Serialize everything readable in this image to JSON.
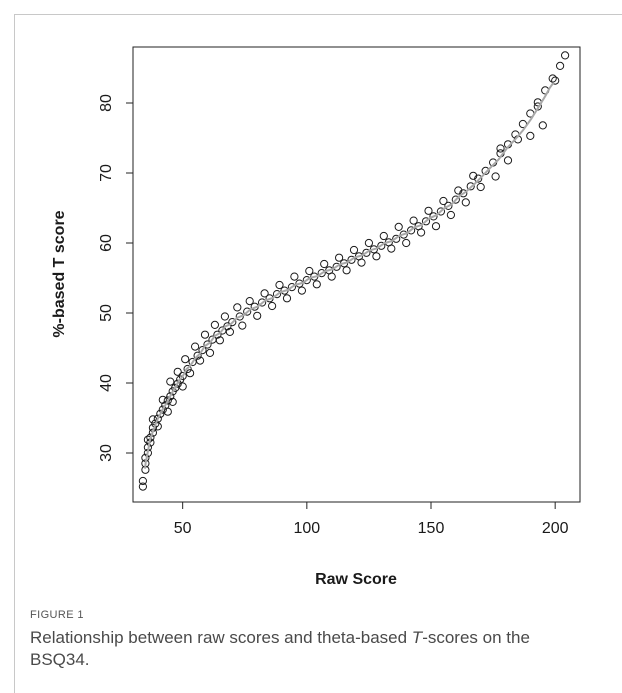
{
  "figure": {
    "label": "FIGURE 1",
    "caption_before": "Relationship between raw scores and theta-based ",
    "caption_italic": "T",
    "caption_after": "-scores on the BSQ34."
  },
  "chart_data": {
    "type": "scatter",
    "xlabel": "Raw Score",
    "ylabel": "%-based T score",
    "xlim": [
      30,
      210
    ],
    "ylim": [
      23,
      88
    ],
    "xticks": [
      50,
      100,
      150,
      200
    ],
    "yticks": [
      30,
      40,
      50,
      60,
      70,
      80
    ],
    "grid": false,
    "point_color": "#1a1a1a",
    "fit_color": "#a8a8a8",
    "points": [
      [
        34,
        25.2
      ],
      [
        34,
        26.0
      ],
      [
        35,
        27.6
      ],
      [
        35,
        28.5
      ],
      [
        35,
        29.3
      ],
      [
        36,
        30.0
      ],
      [
        36,
        30.8
      ],
      [
        37,
        31.5
      ],
      [
        37,
        32.2
      ],
      [
        38,
        32.9
      ],
      [
        38,
        33.6
      ],
      [
        39,
        34.2
      ],
      [
        40,
        34.9
      ],
      [
        41,
        35.6
      ],
      [
        42,
        36.2
      ],
      [
        43,
        36.8
      ],
      [
        44,
        37.5
      ],
      [
        45,
        38.1
      ],
      [
        46,
        38.8
      ],
      [
        47,
        39.3
      ],
      [
        48,
        39.9
      ],
      [
        49,
        40.5
      ],
      [
        50,
        41.0
      ],
      [
        52,
        42.0
      ],
      [
        54,
        43.0
      ],
      [
        56,
        43.9
      ],
      [
        58,
        44.7
      ],
      [
        60,
        45.5
      ],
      [
        62,
        46.2
      ],
      [
        64,
        46.9
      ],
      [
        66,
        47.5
      ],
      [
        68,
        48.1
      ],
      [
        70,
        48.7
      ],
      [
        73,
        49.5
      ],
      [
        76,
        50.2
      ],
      [
        79,
        50.9
      ],
      [
        82,
        51.5
      ],
      [
        85,
        52.1
      ],
      [
        88,
        52.7
      ],
      [
        91,
        53.2
      ],
      [
        94,
        53.7
      ],
      [
        97,
        54.2
      ],
      [
        100,
        54.7
      ],
      [
        103,
        55.2
      ],
      [
        106,
        55.7
      ],
      [
        109,
        56.1
      ],
      [
        112,
        56.6
      ],
      [
        115,
        57.1
      ],
      [
        118,
        57.6
      ],
      [
        121,
        58.1
      ],
      [
        124,
        58.6
      ],
      [
        127,
        59.1
      ],
      [
        130,
        59.6
      ],
      [
        133,
        60.1
      ],
      [
        136,
        60.6
      ],
      [
        139,
        61.2
      ],
      [
        142,
        61.8
      ],
      [
        145,
        62.4
      ],
      [
        148,
        63.1
      ],
      [
        151,
        63.8
      ],
      [
        154,
        64.5
      ],
      [
        157,
        65.3
      ],
      [
        160,
        66.2
      ],
      [
        163,
        67.1
      ],
      [
        166,
        68.1
      ],
      [
        169,
        69.2
      ],
      [
        172,
        70.3
      ],
      [
        175,
        71.5
      ],
      [
        178,
        72.8
      ],
      [
        181,
        74.1
      ],
      [
        184,
        75.5
      ],
      [
        187,
        77.0
      ],
      [
        190,
        78.5
      ],
      [
        193,
        80.1
      ],
      [
        196,
        81.8
      ],
      [
        199,
        83.5
      ],
      [
        202,
        85.3
      ],
      [
        204,
        86.8
      ],
      [
        36,
        31.9
      ],
      [
        38,
        34.8
      ],
      [
        40,
        33.8
      ],
      [
        42,
        37.6
      ],
      [
        44,
        35.9
      ],
      [
        45,
        40.2
      ],
      [
        46,
        37.3
      ],
      [
        48,
        41.6
      ],
      [
        50,
        39.5
      ],
      [
        51,
        43.4
      ],
      [
        53,
        41.4
      ],
      [
        55,
        45.2
      ],
      [
        57,
        43.2
      ],
      [
        59,
        46.9
      ],
      [
        61,
        44.3
      ],
      [
        63,
        48.3
      ],
      [
        65,
        46.1
      ],
      [
        67,
        49.5
      ],
      [
        69,
        47.3
      ],
      [
        72,
        50.8
      ],
      [
        74,
        48.2
      ],
      [
        77,
        51.7
      ],
      [
        80,
        49.6
      ],
      [
        83,
        52.8
      ],
      [
        86,
        51.0
      ],
      [
        89,
        54.0
      ],
      [
        92,
        52.1
      ],
      [
        95,
        55.2
      ],
      [
        98,
        53.2
      ],
      [
        101,
        56.0
      ],
      [
        104,
        54.1
      ],
      [
        107,
        57.0
      ],
      [
        110,
        55.2
      ],
      [
        113,
        57.9
      ],
      [
        116,
        56.1
      ],
      [
        119,
        59.0
      ],
      [
        122,
        57.2
      ],
      [
        125,
        60.0
      ],
      [
        128,
        58.1
      ],
      [
        131,
        61.0
      ],
      [
        134,
        59.2
      ],
      [
        137,
        62.3
      ],
      [
        140,
        60.0
      ],
      [
        143,
        63.2
      ],
      [
        146,
        61.5
      ],
      [
        149,
        64.6
      ],
      [
        152,
        62.4
      ],
      [
        155,
        66.0
      ],
      [
        158,
        64.0
      ],
      [
        161,
        67.5
      ],
      [
        164,
        65.8
      ],
      [
        167,
        69.6
      ],
      [
        170,
        68.0
      ],
      [
        176,
        69.5
      ],
      [
        178,
        73.5
      ],
      [
        181,
        71.8
      ],
      [
        185,
        74.8
      ],
      [
        190,
        75.3
      ],
      [
        193,
        79.5
      ],
      [
        195,
        76.8
      ],
      [
        200,
        83.2
      ]
    ]
  }
}
